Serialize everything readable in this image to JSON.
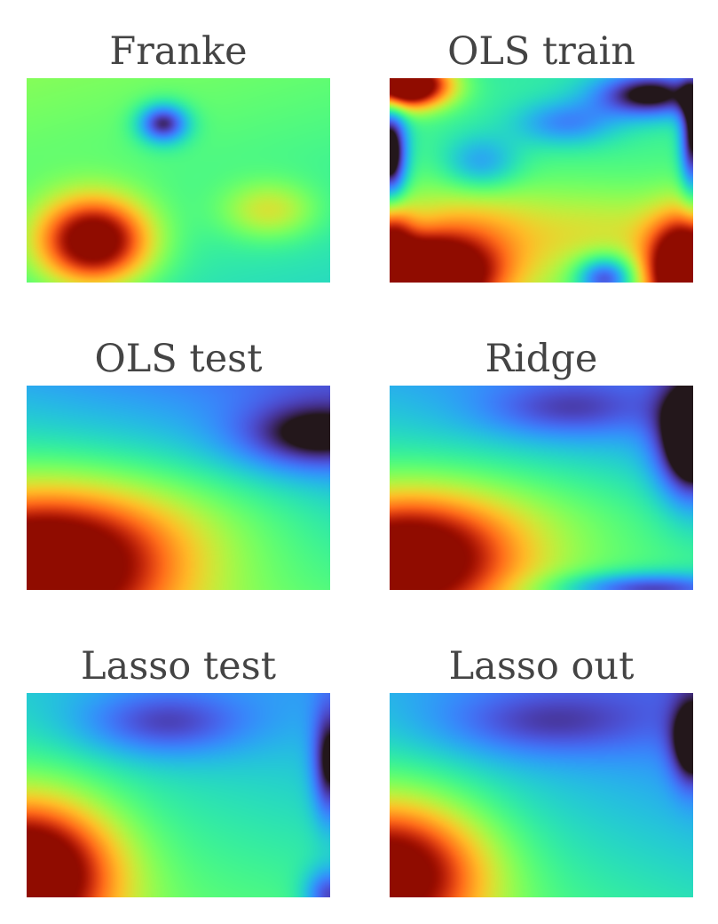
{
  "chart_data": [
    {
      "type": "heatmap",
      "title": "Franke",
      "colormap": "turbo",
      "axes": "off",
      "surface": "franke",
      "blobs": [
        {
          "cx": 0.22,
          "cy": 0.2,
          "sx": 0.13,
          "sy": 0.15,
          "a": 0.72
        },
        {
          "cx": 0.8,
          "cy": 0.35,
          "sx": 0.11,
          "sy": 0.1,
          "a": 0.22
        },
        {
          "cx": 0.45,
          "cy": 0.78,
          "sx": 0.06,
          "sy": 0.07,
          "a": -0.4
        }
      ]
    },
    {
      "type": "heatmap",
      "title": "OLS train",
      "colormap": "turbo",
      "axes": "off",
      "surface": "ols_train",
      "blobs": [
        {
          "cx": 0.25,
          "cy": 0.22,
          "sx": 0.18,
          "sy": 0.18,
          "a": 0.25
        },
        {
          "cx": 0.7,
          "cy": 0.25,
          "sx": 0.22,
          "sy": 0.15,
          "a": 0.15
        },
        {
          "cx": 0.1,
          "cy": 0.02,
          "sx": 0.16,
          "sy": 0.13,
          "a": 0.9
        },
        {
          "cx": 0.0,
          "cy": 0.25,
          "sx": 0.05,
          "sy": 0.12,
          "a": 0.35
        },
        {
          "cx": 0.98,
          "cy": 0.05,
          "sx": 0.09,
          "sy": 0.18,
          "a": 0.9
        },
        {
          "cx": 0.05,
          "cy": 0.97,
          "sx": 0.1,
          "sy": 0.08,
          "a": 0.95
        },
        {
          "cx": 0.3,
          "cy": 0.58,
          "sx": 0.09,
          "sy": 0.1,
          "a": -0.2
        },
        {
          "cx": 0.58,
          "cy": 0.78,
          "sx": 0.12,
          "sy": 0.08,
          "a": -0.2
        },
        {
          "cx": 0.86,
          "cy": 0.92,
          "sx": 0.13,
          "sy": 0.08,
          "a": -0.4
        },
        {
          "cx": 0.0,
          "cy": 0.62,
          "sx": 0.04,
          "sy": 0.18,
          "a": -0.5
        },
        {
          "cx": 1.0,
          "cy": 0.7,
          "sx": 0.03,
          "sy": 0.2,
          "a": -0.4
        },
        {
          "cx": 0.71,
          "cy": 0.02,
          "sx": 0.07,
          "sy": 0.08,
          "a": -0.4
        }
      ]
    },
    {
      "type": "heatmap",
      "title": "OLS test",
      "colormap": "turbo",
      "axes": "off",
      "surface": "ols_test",
      "blobs": [
        {
          "cx": 0.05,
          "cy": 0.12,
          "sx": 0.3,
          "sy": 0.25,
          "a": 0.75
        },
        {
          "cx": 0.45,
          "cy": 0.35,
          "sx": 0.35,
          "sy": 0.2,
          "a": 0.1
        },
        {
          "cx": 0.95,
          "cy": 0.75,
          "sx": 0.18,
          "sy": 0.12,
          "a": -0.25
        }
      ]
    },
    {
      "type": "heatmap",
      "title": "Ridge",
      "colormap": "turbo",
      "axes": "off",
      "surface": "ridge",
      "blobs": [
        {
          "cx": 0.05,
          "cy": 0.15,
          "sx": 0.25,
          "sy": 0.22,
          "a": 0.7
        },
        {
          "cx": 0.45,
          "cy": 0.35,
          "sx": 0.35,
          "sy": 0.2,
          "a": 0.1
        },
        {
          "cx": 0.58,
          "cy": 0.88,
          "sx": 0.2,
          "sy": 0.1,
          "a": -0.15
        },
        {
          "cx": 1.0,
          "cy": 0.72,
          "sx": 0.08,
          "sy": 0.2,
          "a": -0.45
        },
        {
          "cx": 0.85,
          "cy": 0.0,
          "sx": 0.22,
          "sy": 0.06,
          "a": -0.35
        }
      ]
    },
    {
      "type": "heatmap",
      "title": "Lasso test",
      "colormap": "turbo",
      "axes": "off",
      "surface": "lasso_test",
      "blobs": [
        {
          "cx": 0.0,
          "cy": 0.12,
          "sx": 0.2,
          "sy": 0.25,
          "a": 0.8
        },
        {
          "cx": 0.45,
          "cy": 0.85,
          "sx": 0.2,
          "sy": 0.12,
          "a": -0.2
        },
        {
          "cx": 1.0,
          "cy": 0.65,
          "sx": 0.04,
          "sy": 0.2,
          "a": -0.3
        },
        {
          "cx": 1.0,
          "cy": 0.0,
          "sx": 0.06,
          "sy": 0.1,
          "a": -0.3
        }
      ]
    },
    {
      "type": "heatmap",
      "title": "Lasso out",
      "colormap": "turbo",
      "axes": "off",
      "surface": "lasso_out",
      "blobs": [
        {
          "cx": 0.0,
          "cy": 0.12,
          "sx": 0.22,
          "sy": 0.25,
          "a": 0.7
        },
        {
          "cx": 0.5,
          "cy": 0.85,
          "sx": 0.25,
          "sy": 0.12,
          "a": -0.15
        },
        {
          "cx": 1.0,
          "cy": 0.75,
          "sx": 0.05,
          "sy": 0.15,
          "a": -0.3
        }
      ]
    }
  ]
}
